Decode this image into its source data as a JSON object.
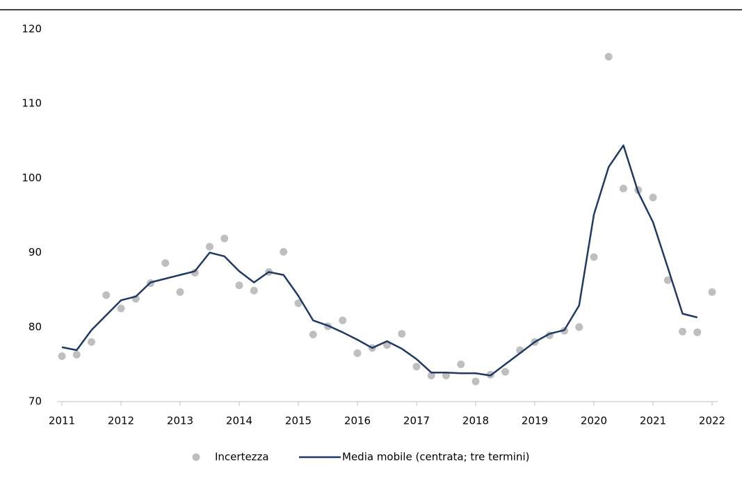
{
  "chart_data": {
    "type": "scatter-line",
    "x": [
      2011,
      2011.25,
      2011.5,
      2011.75,
      2012,
      2012.25,
      2012.5,
      2012.75,
      2013,
      2013.25,
      2013.5,
      2013.75,
      2014,
      2014.25,
      2014.5,
      2014.75,
      2015,
      2015.25,
      2015.5,
      2015.75,
      2016,
      2016.25,
      2016.5,
      2016.75,
      2017,
      2017.25,
      2017.5,
      2017.75,
      2018,
      2018.25,
      2018.5,
      2018.75,
      2019,
      2019.25,
      2019.5,
      2019.75,
      2020,
      2020.25,
      2020.5,
      2020.75,
      2021,
      2021.25,
      2021.5,
      2021.75,
      2022
    ],
    "series": [
      {
        "name": "Incertezza",
        "kind": "scatter",
        "color": "#bfbfbf",
        "values": [
          76.1,
          76.3,
          78.0,
          84.3,
          82.5,
          83.8,
          85.9,
          88.6,
          84.7,
          87.3,
          90.8,
          91.9,
          85.6,
          84.9,
          87.4,
          90.1,
          83.2,
          79.0,
          80.1,
          80.9,
          76.5,
          77.2,
          77.6,
          79.1,
          74.7,
          73.5,
          73.5,
          75.0,
          72.7,
          73.6,
          74.0,
          76.9,
          78.0,
          78.9,
          79.5,
          80.0,
          89.4,
          116.3,
          98.6,
          98.4,
          97.4,
          86.3,
          79.4,
          79.3,
          84.7
        ]
      },
      {
        "name": "Media mobile (centrata; tre termini)",
        "kind": "line",
        "color": "#1f3864",
        "values": [
          77.3,
          76.9,
          79.6,
          81.6,
          83.6,
          84.1,
          86.0,
          86.5,
          87.0,
          87.5,
          90.0,
          89.5,
          87.5,
          86.0,
          87.4,
          87.0,
          84.2,
          80.9,
          80.2,
          79.3,
          78.3,
          77.2,
          78.1,
          77.1,
          75.7,
          73.9,
          73.9,
          73.8,
          73.8,
          73.5,
          75.0,
          76.5,
          78.0,
          79.1,
          79.6,
          82.9,
          95.1,
          101.5,
          104.4,
          98.1,
          94.1,
          88.0,
          81.8,
          81.3,
          null
        ]
      }
    ],
    "xlim": [
      2011,
      2022
    ],
    "xticks": [
      2011,
      2012,
      2013,
      2014,
      2015,
      2016,
      2017,
      2018,
      2019,
      2020,
      2021,
      2022
    ],
    "ylim": [
      70,
      120
    ],
    "yticks": [
      70,
      80,
      90,
      100,
      110,
      120
    ]
  }
}
